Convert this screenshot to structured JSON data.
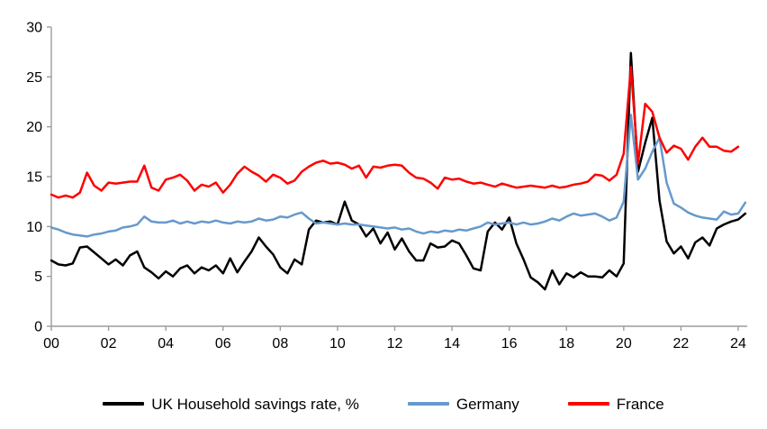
{
  "chart_data": {
    "type": "line",
    "title": "",
    "xlabel": "",
    "ylabel": "",
    "x_start_year": 2000,
    "x_step_years": 0.25,
    "x_axis_years_shown": [
      "00",
      "02",
      "04",
      "06",
      "08",
      "10",
      "12",
      "14",
      "16",
      "18",
      "20",
      "22",
      "24"
    ],
    "ylim": [
      0,
      30
    ],
    "y_ticks": [
      0,
      5,
      10,
      15,
      20,
      25,
      30
    ],
    "grid": false,
    "legend_position": "bottom",
    "axis_color": "#9c9c9c",
    "series": [
      {
        "name": "UK Household savings rate, %",
        "color": "#000000",
        "values": [
          6.6,
          6.2,
          6.1,
          6.3,
          7.9,
          8.0,
          7.4,
          6.8,
          6.2,
          6.7,
          6.1,
          7.1,
          7.5,
          5.9,
          5.4,
          4.8,
          5.5,
          5.0,
          5.8,
          6.1,
          5.3,
          5.9,
          5.6,
          6.1,
          5.3,
          6.8,
          5.4,
          6.5,
          7.5,
          8.9,
          8.0,
          7.2,
          5.9,
          5.3,
          6.7,
          6.2,
          9.7,
          10.6,
          10.4,
          10.5,
          10.2,
          12.5,
          10.6,
          10.2,
          9.0,
          9.8,
          8.3,
          9.4,
          7.7,
          8.8,
          7.5,
          6.6,
          6.6,
          8.3,
          7.9,
          8.0,
          8.6,
          8.3,
          7.1,
          5.8,
          5.6,
          9.5,
          10.4,
          9.7,
          10.9,
          8.3,
          6.7,
          4.9,
          4.4,
          3.7,
          5.6,
          4.2,
          5.3,
          4.9,
          5.4,
          5.0,
          5.0,
          4.9,
          5.6,
          5.0,
          6.3,
          27.4,
          15.5,
          18.4,
          20.9,
          12.6,
          8.5,
          7.3,
          8.0,
          6.8,
          8.4,
          8.9,
          8.1,
          9.8,
          10.2,
          10.5,
          10.7,
          11.3
        ]
      },
      {
        "name": "Germany",
        "color": "#6699CC",
        "values": [
          9.9,
          9.7,
          9.4,
          9.2,
          9.1,
          9.0,
          9.2,
          9.3,
          9.5,
          9.6,
          9.9,
          10.0,
          10.2,
          11.0,
          10.5,
          10.4,
          10.4,
          10.6,
          10.3,
          10.5,
          10.3,
          10.5,
          10.4,
          10.6,
          10.4,
          10.3,
          10.5,
          10.4,
          10.5,
          10.8,
          10.6,
          10.7,
          11.0,
          10.9,
          11.2,
          11.4,
          10.8,
          10.3,
          10.4,
          10.3,
          10.2,
          10.3,
          10.2,
          10.2,
          10.1,
          10.0,
          9.9,
          9.8,
          9.9,
          9.7,
          9.8,
          9.5,
          9.3,
          9.5,
          9.4,
          9.6,
          9.5,
          9.7,
          9.6,
          9.8,
          10.0,
          10.4,
          10.2,
          10.3,
          10.4,
          10.2,
          10.4,
          10.2,
          10.3,
          10.5,
          10.8,
          10.6,
          11.0,
          11.3,
          11.1,
          11.2,
          11.3,
          11.0,
          10.6,
          10.9,
          12.5,
          21.2,
          14.7,
          15.8,
          17.5,
          18.9,
          14.4,
          12.3,
          11.9,
          11.4,
          11.1,
          10.9,
          10.8,
          10.7,
          11.5,
          11.2,
          11.3,
          12.4
        ]
      },
      {
        "name": "France",
        "color": "#FF0000",
        "values": [
          13.2,
          12.9,
          13.1,
          12.9,
          13.4,
          15.4,
          14.1,
          13.6,
          14.4,
          14.3,
          14.4,
          14.5,
          14.5,
          16.1,
          13.9,
          13.6,
          14.7,
          14.9,
          15.2,
          14.6,
          13.6,
          14.2,
          14.0,
          14.4,
          13.4,
          14.2,
          15.3,
          16.0,
          15.5,
          15.1,
          14.5,
          15.2,
          14.9,
          14.3,
          14.6,
          15.5,
          16.0,
          16.4,
          16.6,
          16.3,
          16.4,
          16.2,
          15.8,
          16.1,
          14.9,
          16.0,
          15.9,
          16.1,
          16.2,
          16.1,
          15.4,
          14.9,
          14.8,
          14.4,
          13.8,
          14.9,
          14.7,
          14.8,
          14.5,
          14.3,
          14.4,
          14.2,
          14.0,
          14.3,
          14.1,
          13.9,
          14.0,
          14.1,
          14.0,
          13.9,
          14.1,
          13.9,
          14.0,
          14.2,
          14.3,
          14.5,
          15.2,
          15.1,
          14.6,
          15.2,
          17.3,
          26.0,
          16.3,
          22.3,
          21.5,
          18.9,
          17.4,
          18.1,
          17.8,
          16.7,
          18.0,
          18.9,
          18.0,
          18.0,
          17.6,
          17.5,
          18.0
        ]
      }
    ]
  }
}
